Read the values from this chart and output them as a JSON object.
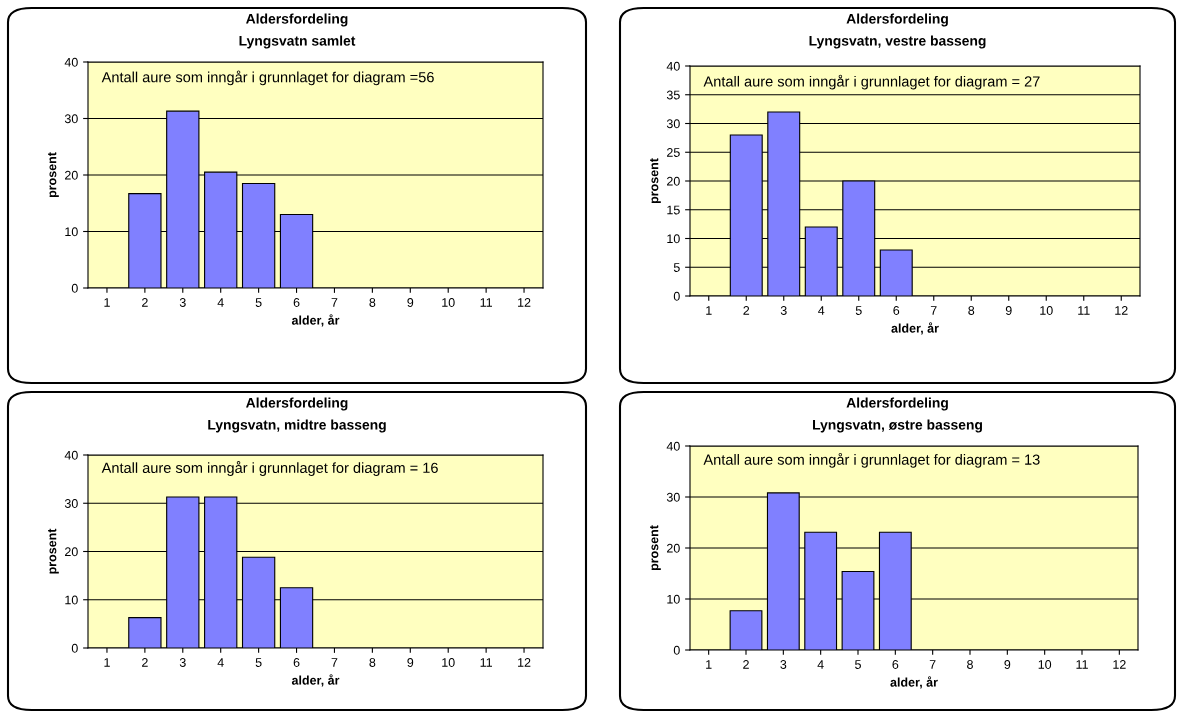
{
  "chart_data": [
    {
      "type": "bar",
      "title": "Aldersfordeling",
      "subtitle": "Lyngsvatn samlet",
      "xlabel": "alder, år",
      "ylabel": "prosent",
      "categories": [
        "1",
        "2",
        "3",
        "4",
        "5",
        "6",
        "7",
        "8",
        "9",
        "10",
        "11",
        "12"
      ],
      "values": [
        null,
        16.7,
        31.3,
        20.5,
        18.5,
        13,
        null,
        null,
        null,
        null,
        null,
        null
      ],
      "color": "#8080ff",
      "ylim": [
        0,
        40
      ],
      "yticks": [
        0,
        10,
        20,
        30,
        40
      ],
      "grid": "y",
      "annotations": [
        "Antall aure som inngår i grunnlaget for diagram =56"
      ]
    },
    {
      "type": "bar",
      "title": "Aldersfordeling",
      "subtitle": "Lyngsvatn, vestre basseng",
      "xlabel": "alder, år",
      "ylabel": "prosent",
      "categories": [
        "1",
        "2",
        "3",
        "4",
        "5",
        "6",
        "7",
        "8",
        "9",
        "10",
        "11",
        "12"
      ],
      "values": [
        null,
        28,
        32,
        12,
        20,
        8,
        null,
        null,
        null,
        null,
        null,
        null
      ],
      "color": "#8080ff",
      "ylim": [
        0,
        40
      ],
      "yticks": [
        0,
        5,
        10,
        15,
        20,
        25,
        30,
        35,
        40
      ],
      "grid": "y",
      "annotations": [
        "Antall aure som inngår i grunnlaget for diagram = 27"
      ]
    },
    {
      "type": "bar",
      "title": "Aldersfordeling",
      "subtitle": "Lyngsvatn, midtre basseng",
      "xlabel": "alder, år",
      "ylabel": "prosent",
      "categories": [
        "1",
        "2",
        "3",
        "4",
        "5",
        "6",
        "7",
        "8",
        "9",
        "10",
        "11",
        "12"
      ],
      "values": [
        null,
        6.3,
        31.3,
        31.3,
        18.8,
        12.5,
        null,
        null,
        null,
        null,
        null,
        null
      ],
      "color": "#8080ff",
      "ylim": [
        0,
        40
      ],
      "yticks": [
        0,
        10,
        20,
        30,
        40
      ],
      "grid": "y",
      "annotations": [
        "Antall aure som inngår i grunnlaget for diagram = 16"
      ]
    },
    {
      "type": "bar",
      "title": "Aldersfordeling",
      "subtitle": "Lyngsvatn, østre basseng",
      "xlabel": "alder, år",
      "ylabel": "prosent",
      "categories": [
        "1",
        "2",
        "3",
        "4",
        "5",
        "6",
        "7",
        "8",
        "9",
        "10",
        "11",
        "12"
      ],
      "values": [
        null,
        7.7,
        30.8,
        23.1,
        15.4,
        23.1,
        null,
        null,
        null,
        null,
        null,
        null
      ],
      "color": "#8080ff",
      "ylim": [
        0,
        40
      ],
      "yticks": [
        0,
        10,
        20,
        30,
        40
      ],
      "grid": "y",
      "annotations": [
        "Antall aure som inngår i grunnlaget for diagram = 13"
      ]
    }
  ]
}
